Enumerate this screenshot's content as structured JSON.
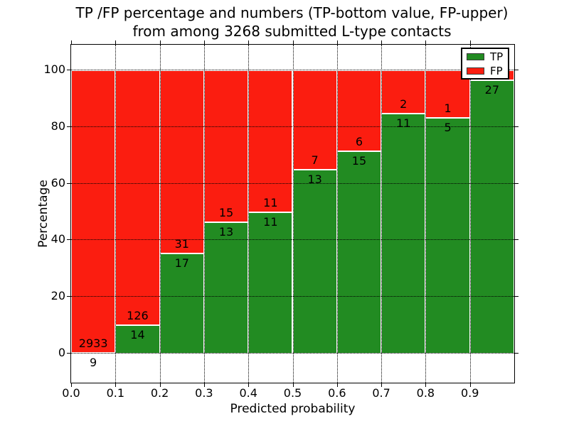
{
  "title": {
    "line1": "TP /FP percentage and numbers (TP-bottom value, FP-upper)",
    "line2": "from among 3268 submitted L-type contacts"
  },
  "colors": {
    "tp_green": "#228b22",
    "fp_red": "#fb1d10",
    "axis": "#000000",
    "grid": "#000000",
    "background": "#ffffff"
  },
  "chart_data": {
    "type": "bar",
    "stacked": true,
    "title": "TP /FP percentage and numbers (TP-bottom value, FP-upper) from among 3268 submitted L-type contacts",
    "xlabel": "Predicted probability",
    "ylabel": "Percentage",
    "total_submitted_contacts": 3268,
    "xlim": [
      0.0,
      1.0
    ],
    "ylim": [
      -10.3,
      109.0
    ],
    "x_ticks": [
      "0.0",
      "0.1",
      "0.2",
      "0.3",
      "0.4",
      "0.5",
      "0.6",
      "0.7",
      "0.8",
      "0.9"
    ],
    "y_ticks": [
      "0",
      "20",
      "40",
      "60",
      "80",
      "100"
    ],
    "grid": "dotted, both axes, drawn over bars",
    "legend_position": "upper right",
    "legend": [
      {
        "label": "TP",
        "color": "#228b22"
      },
      {
        "label": "FP",
        "color": "#fb1d10"
      }
    ],
    "bins": [
      {
        "range": "0.0-0.1",
        "tp": 9,
        "fp": 2933,
        "tp_pct": 0.31
      },
      {
        "range": "0.1-0.2",
        "tp": 14,
        "fp": 126,
        "tp_pct": 10.0
      },
      {
        "range": "0.2-0.3",
        "tp": 17,
        "fp": 31,
        "tp_pct": 35.42
      },
      {
        "range": "0.3-0.4",
        "tp": 13,
        "fp": 15,
        "tp_pct": 46.43
      },
      {
        "range": "0.4-0.5",
        "tp": 11,
        "fp": 11,
        "tp_pct": 50.0
      },
      {
        "range": "0.5-0.6",
        "tp": 13,
        "fp": 7,
        "tp_pct": 65.0
      },
      {
        "range": "0.6-0.7",
        "tp": 15,
        "fp": 6,
        "tp_pct": 71.43
      },
      {
        "range": "0.7-0.8",
        "tp": 11,
        "fp": 2,
        "tp_pct": 84.62
      },
      {
        "range": "0.8-0.9",
        "tp": 5,
        "fp": 1,
        "tp_pct": 83.33
      },
      {
        "range": "0.9-1.0",
        "tp": 27,
        "fp": null,
        "tp_pct": 96.43
      }
    ]
  }
}
